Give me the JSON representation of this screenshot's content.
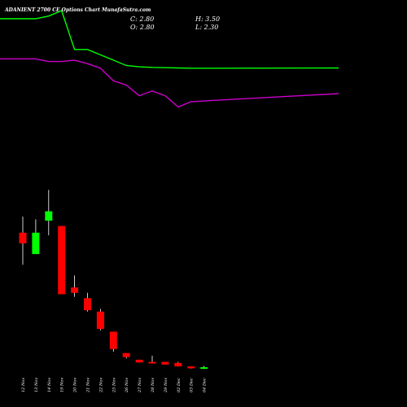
{
  "header": {
    "title": "ADANIENT 2700 CE Options Chart MunafaSutra.com",
    "close_label": "C: 2.80",
    "open_label": "O: 2.80",
    "high_label": "H: 3.50",
    "low_label": "L: 2.30"
  },
  "colors": {
    "background": "#000000",
    "up": "#00ff00",
    "down": "#ff0000",
    "ma_fast": "#00ff00",
    "ma_slow": "#cc00cc",
    "wick": "#ffffff"
  },
  "chart_data": {
    "type": "candlestick",
    "title": "ADANIENT 2700 CE Options Chart MunafaSutra.com",
    "categories": [
      "12 Nov",
      "13 Nov",
      "14 Nov",
      "19 Nov",
      "20 Nov",
      "21 Nov",
      "22 Nov",
      "25 Nov",
      "26 Nov",
      "27 Nov",
      "28 Nov",
      "29 Nov",
      "02 Dec",
      "03 Dec",
      "04 Dec"
    ],
    "candles": [
      {
        "date": "12 Nov",
        "open": 200,
        "high": 260,
        "low": 80,
        "close": 160,
        "direction": "down"
      },
      {
        "date": "13 Nov",
        "open": 120,
        "high": 250,
        "low": 125,
        "close": 200,
        "direction": "up"
      },
      {
        "date": "14 Nov",
        "open": 245,
        "high": 360,
        "low": 190,
        "close": 280,
        "direction": "up"
      },
      {
        "date": "19 Nov",
        "open": 225,
        "high": 225,
        "low": -30,
        "close": -30,
        "direction": "down"
      },
      {
        "date": "20 Nov",
        "open": -5,
        "high": 40,
        "low": -40,
        "close": -25,
        "direction": "down"
      },
      {
        "date": "21 Nov",
        "open": -45,
        "high": -25,
        "low": -95,
        "close": -90,
        "direction": "down"
      },
      {
        "date": "22 Nov",
        "open": -95,
        "high": -85,
        "low": -165,
        "close": -160,
        "direction": "down"
      },
      {
        "date": "25 Nov",
        "open": -170,
        "high": -170,
        "low": -245,
        "close": -235,
        "direction": "down"
      },
      {
        "date": "26 Nov",
        "open": -250,
        "high": -250,
        "low": -270,
        "close": -265,
        "direction": "down"
      },
      {
        "date": "27 Nov",
        "open": -275,
        "high": -275,
        "low": -285,
        "close": -285,
        "direction": "down"
      },
      {
        "date": "28 Nov",
        "open": -285,
        "high": -260,
        "low": -285,
        "close": -283,
        "direction": "down"
      },
      {
        "date": "29 Nov",
        "open": -283,
        "high": -283,
        "low": -293,
        "close": -293,
        "direction": "down"
      },
      {
        "date": "02 Dec",
        "open": -287,
        "high": -283,
        "low": -300,
        "close": -300,
        "direction": "down"
      },
      {
        "date": "03 Dec",
        "open": -300,
        "high": -300,
        "low": -308,
        "close": -307,
        "direction": "down"
      },
      {
        "date": "04 Dec",
        "open": -307,
        "high": -298,
        "low": -310,
        "close": -303,
        "direction": "up"
      }
    ],
    "series": [
      {
        "color": "#00ff00",
        "values": [
          1000,
          1000,
          1010,
          1030,
          885,
          885,
          865,
          845,
          825,
          820,
          818,
          817,
          816,
          815,
          816
        ]
      },
      {
        "color": "#cc00cc",
        "values": [
          850,
          850,
          840,
          840,
          845,
          832,
          815,
          768,
          752,
          712,
          730,
          712,
          670,
          690,
          720
        ]
      }
    ],
    "ylim": [
      -330,
      1070
    ],
    "grid": false,
    "legend": "none"
  }
}
